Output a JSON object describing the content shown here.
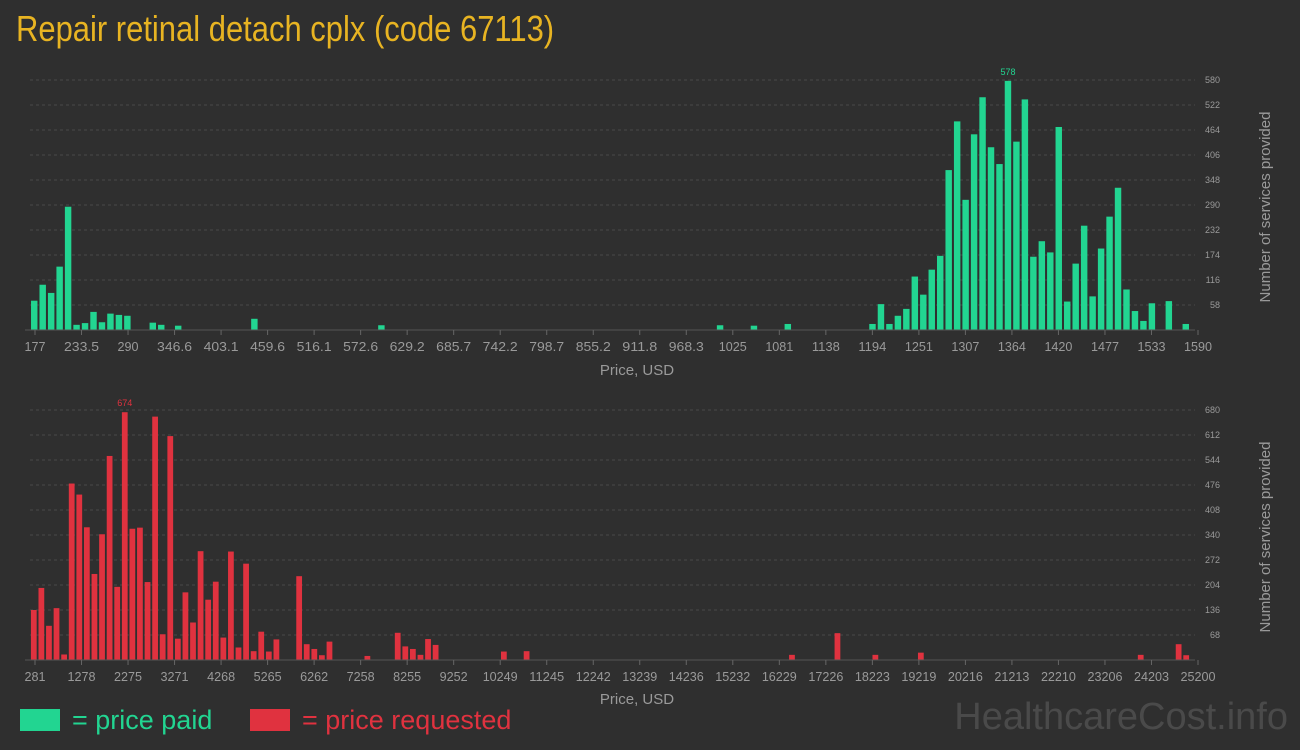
{
  "title": "Repair retinal detach cplx (code 67113)",
  "colors": {
    "background": "#2f2f2f",
    "title": "#e8b422",
    "paid": "#22d591",
    "requested": "#e0323f",
    "axis_text": "#9a9a9a",
    "grid": "#4a4a4a"
  },
  "legend": {
    "paid_label": "= price paid",
    "requested_label": "= price requested"
  },
  "watermark": "HealthcareCost.info",
  "chart_data": [
    {
      "type": "bar",
      "series_name": "price paid",
      "color": "#22d591",
      "xlabel": "Price, USD",
      "ylabel": "Number of services provided",
      "x_tick_labels": [
        "177",
        "233.5",
        "290",
        "346.6",
        "403.1",
        "459.6",
        "516.1",
        "572.6",
        "629.2",
        "685.7",
        "742.2",
        "798.7",
        "855.2",
        "911.8",
        "968.3",
        "1025",
        "1081",
        "1138",
        "1194",
        "1251",
        "1307",
        "1364",
        "1420",
        "1477",
        "1533",
        "1590"
      ],
      "y_ticks": [
        58,
        116,
        174,
        232,
        290,
        348,
        406,
        464,
        522,
        580
      ],
      "ylim": [
        0,
        580
      ],
      "peak_label": "578",
      "values": [
        68,
        105,
        86,
        147,
        286,
        12,
        16,
        42,
        18,
        38,
        35,
        33,
        0,
        0,
        17,
        12,
        0,
        10,
        0,
        0,
        0,
        0,
        0,
        0,
        0,
        0,
        26,
        0,
        0,
        0,
        0,
        0,
        0,
        0,
        0,
        0,
        0,
        0,
        0,
        0,
        0,
        11,
        0,
        0,
        0,
        0,
        0,
        0,
        0,
        0,
        0,
        0,
        0,
        0,
        0,
        0,
        0,
        0,
        0,
        0,
        0,
        0,
        0,
        0,
        0,
        0,
        0,
        0,
        0,
        0,
        0,
        0,
        0,
        0,
        0,
        0,
        0,
        0,
        0,
        0,
        0,
        11,
        0,
        0,
        0,
        10,
        0,
        0,
        0,
        14,
        0,
        0,
        0,
        0,
        0,
        0,
        0,
        0,
        0,
        14,
        60,
        14,
        33,
        49,
        124,
        82,
        140,
        172,
        371,
        484,
        302,
        454,
        540,
        424,
        385,
        578,
        437,
        535,
        170,
        206,
        180,
        471,
        66,
        154,
        242,
        78,
        189,
        263,
        330,
        94,
        44,
        21,
        62,
        0,
        67,
        0,
        14
      ]
    },
    {
      "type": "bar",
      "series_name": "price requested",
      "color": "#e0323f",
      "xlabel": "Price, USD",
      "ylabel": "Number of services provided",
      "x_tick_labels": [
        "281",
        "1278",
        "2275",
        "3271",
        "4268",
        "5265",
        "6262",
        "7258",
        "8255",
        "9252",
        "10249",
        "11245",
        "12242",
        "13239",
        "14236",
        "15232",
        "16229",
        "17226",
        "18223",
        "19219",
        "20216",
        "21213",
        "22210",
        "23206",
        "24203",
        "25200"
      ],
      "y_ticks": [
        68,
        136,
        204,
        272,
        340,
        408,
        476,
        544,
        612,
        680
      ],
      "ylim": [
        0,
        680
      ],
      "peak_label": "674",
      "values": [
        136,
        196,
        93,
        141,
        15,
        480,
        450,
        361,
        234,
        342,
        555,
        199,
        674,
        357,
        360,
        212,
        662,
        70,
        609,
        58,
        184,
        102,
        296,
        164,
        213,
        61,
        295,
        34,
        262,
        24,
        77,
        23,
        56,
        0,
        0,
        228,
        43,
        30,
        13,
        50,
        0,
        0,
        0,
        0,
        11,
        0,
        0,
        0,
        74,
        37,
        30,
        14,
        57,
        41,
        0,
        0,
        0,
        0,
        0,
        0,
        0,
        0,
        23,
        0,
        0,
        24,
        0,
        0,
        0,
        0,
        0,
        0,
        0,
        0,
        0,
        0,
        0,
        0,
        0,
        0,
        0,
        0,
        0,
        0,
        0,
        0,
        0,
        0,
        0,
        0,
        0,
        0,
        0,
        0,
        0,
        0,
        0,
        0,
        0,
        0,
        14,
        0,
        0,
        0,
        0,
        0,
        73,
        0,
        0,
        0,
        0,
        14,
        0,
        0,
        0,
        0,
        0,
        20,
        0,
        0,
        0,
        0,
        0,
        0,
        0,
        0,
        0,
        0,
        0,
        0,
        0,
        0,
        0,
        0,
        0,
        0,
        0,
        0,
        0,
        0,
        0,
        0,
        0,
        0,
        0,
        0,
        14,
        0,
        0,
        0,
        0,
        43,
        13
      ]
    }
  ]
}
